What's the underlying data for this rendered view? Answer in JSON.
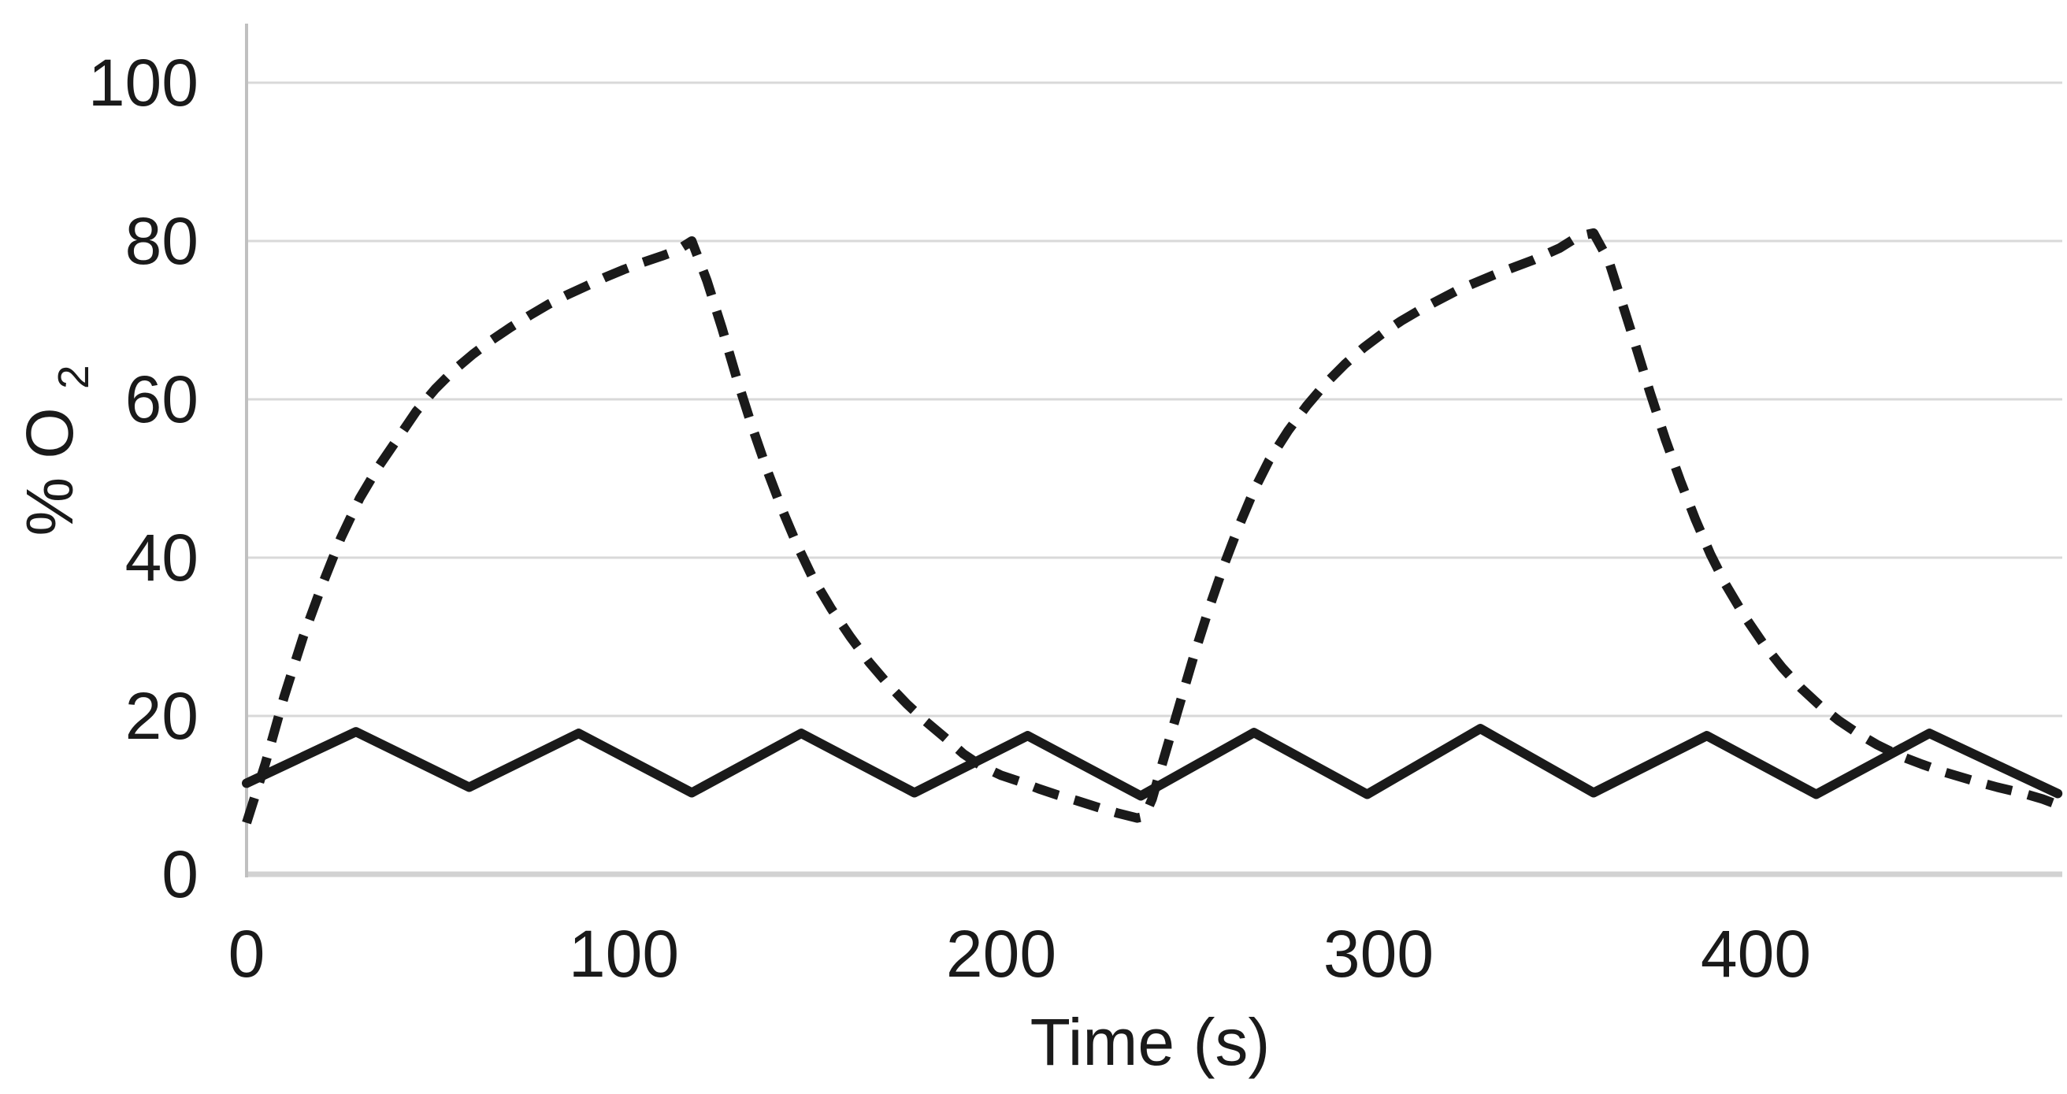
{
  "colors": {
    "background": "#ffffff",
    "line": "#1a1a1a",
    "gridline": "#d9d9d9",
    "baseline": "#d2d2d2",
    "y_axis_line": "#c0c0c0",
    "text": "#1a1a1a"
  },
  "chart_data": {
    "type": "line",
    "title": "",
    "xlabel": "Time (s)",
    "ylabel": "% O2",
    "ylabel_main": "% O",
    "ylabel_sub": "2",
    "xlim": [
      0,
      480
    ],
    "ylim": [
      0,
      107
    ],
    "x_ticks": [
      0,
      100,
      200,
      300,
      400
    ],
    "y_ticks": [
      0,
      20,
      40,
      60,
      80,
      100
    ],
    "grid": "horizontal",
    "legend": "none",
    "series": [
      {
        "name": "dashed-curve",
        "style": "dashed",
        "color": "#1a1a1a",
        "points": [
          [
            0,
            6.5
          ],
          [
            5,
            14
          ],
          [
            10,
            22.5
          ],
          [
            15,
            30
          ],
          [
            20,
            36.5
          ],
          [
            25,
            42.5
          ],
          [
            30,
            47.5
          ],
          [
            35,
            51.5
          ],
          [
            40,
            55
          ],
          [
            45,
            58.5
          ],
          [
            50,
            61.3
          ],
          [
            55,
            63.7
          ],
          [
            60,
            65.7
          ],
          [
            65,
            67.5
          ],
          [
            70,
            69.1
          ],
          [
            75,
            70.6
          ],
          [
            80,
            72
          ],
          [
            85,
            73.2
          ],
          [
            90,
            74.3
          ],
          [
            95,
            75.4
          ],
          [
            100,
            76.4
          ],
          [
            105,
            77.3
          ],
          [
            110,
            78.1
          ],
          [
            114,
            78.8
          ],
          [
            118,
            80
          ],
          [
            122,
            75
          ],
          [
            126,
            69
          ],
          [
            130,
            62.5
          ],
          [
            134,
            56.5
          ],
          [
            138,
            51
          ],
          [
            142,
            46
          ],
          [
            146,
            41.5
          ],
          [
            150,
            37.5
          ],
          [
            155,
            33.5
          ],
          [
            160,
            30
          ],
          [
            165,
            26.8
          ],
          [
            170,
            24
          ],
          [
            175,
            21.5
          ],
          [
            180,
            19.3
          ],
          [
            185,
            17.3
          ],
          [
            190,
            15.2
          ],
          [
            195,
            13.6
          ],
          [
            200,
            12.5
          ],
          [
            205,
            11.7
          ],
          [
            210,
            10.8
          ],
          [
            215,
            10
          ],
          [
            220,
            9.3
          ],
          [
            226,
            8.4
          ],
          [
            231,
            7.7
          ],
          [
            236,
            7.1
          ],
          [
            238,
            7.3
          ],
          [
            240,
            9.5
          ],
          [
            243,
            14.5
          ],
          [
            247,
            21
          ],
          [
            251,
            27.5
          ],
          [
            255,
            33.5
          ],
          [
            259,
            39
          ],
          [
            263,
            44
          ],
          [
            267,
            48.5
          ],
          [
            271,
            52.3
          ],
          [
            276,
            56
          ],
          [
            281,
            59.2
          ],
          [
            286,
            62
          ],
          [
            291,
            64.4
          ],
          [
            296,
            66.5
          ],
          [
            301,
            68.3
          ],
          [
            306,
            69.9
          ],
          [
            311,
            71.3
          ],
          [
            321,
            73.8
          ],
          [
            331,
            75.8
          ],
          [
            341,
            77.6
          ],
          [
            348,
            79.1
          ],
          [
            353,
            80.6
          ],
          [
            357,
            81
          ],
          [
            361,
            77.5
          ],
          [
            364,
            73
          ],
          [
            368,
            67
          ],
          [
            372,
            60.8
          ],
          [
            376,
            55
          ],
          [
            380,
            49.7
          ],
          [
            384,
            44.8
          ],
          [
            388,
            40.4
          ],
          [
            392,
            36.6
          ],
          [
            397,
            32.6
          ],
          [
            402,
            29.1
          ],
          [
            407,
            26.1
          ],
          [
            412,
            23.5
          ],
          [
            417,
            21.3
          ],
          [
            422,
            19.4
          ],
          [
            427,
            17.8
          ],
          [
            432,
            16.4
          ],
          [
            438,
            15
          ],
          [
            444,
            13.9
          ],
          [
            450,
            12.9
          ],
          [
            457,
            11.9
          ],
          [
            464,
            11
          ],
          [
            471,
            10.2
          ],
          [
            476,
            9.5
          ],
          [
            480,
            8.8
          ]
        ]
      },
      {
        "name": "solid-curve",
        "style": "solid",
        "color": "#1a1a1a",
        "points": [
          [
            0,
            11.5
          ],
          [
            29,
            18
          ],
          [
            59,
            11
          ],
          [
            88,
            17.8
          ],
          [
            118,
            10.3
          ],
          [
            147,
            17.8
          ],
          [
            177,
            10.3
          ],
          [
            207,
            17.5
          ],
          [
            237,
            9.9
          ],
          [
            267,
            17.9
          ],
          [
            297,
            10.1
          ],
          [
            327,
            18.4
          ],
          [
            357,
            10.3
          ],
          [
            387,
            17.5
          ],
          [
            416,
            10.1
          ],
          [
            446,
            17.8
          ],
          [
            480,
            10.2
          ]
        ]
      }
    ]
  }
}
